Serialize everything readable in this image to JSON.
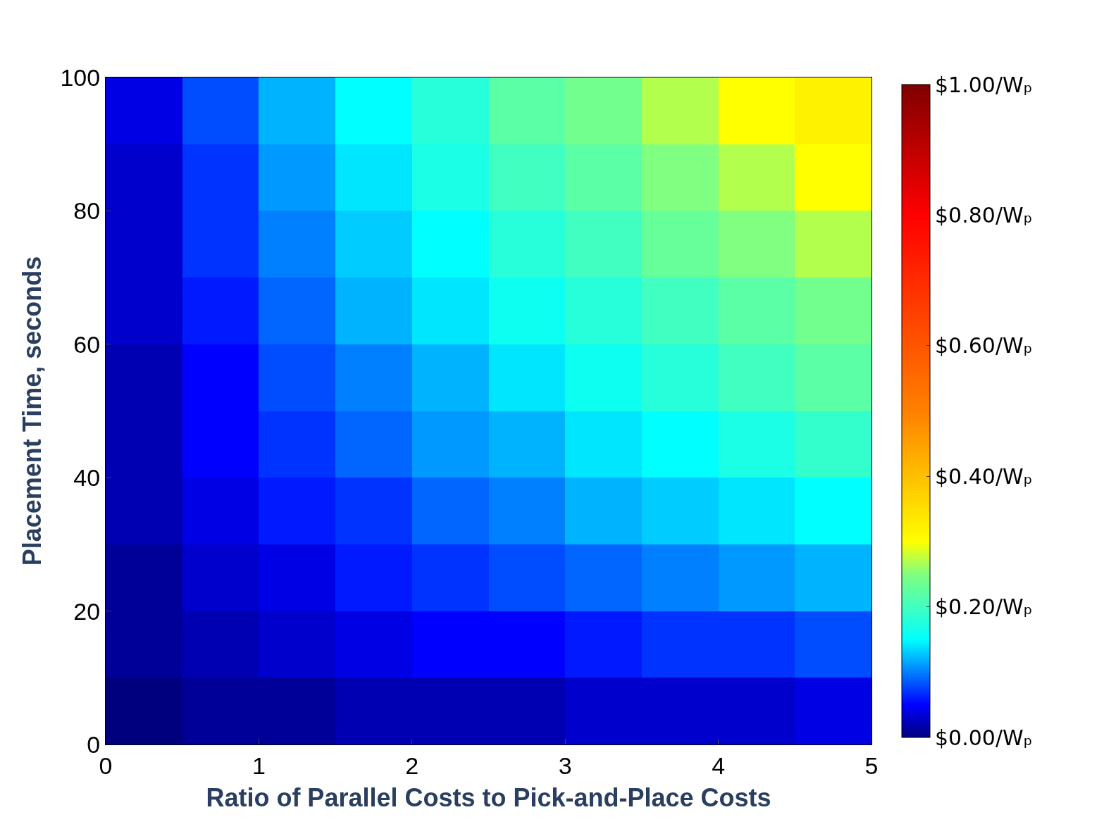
{
  "chart_data": {
    "type": "heatmap",
    "xlabel": "Ratio of Parallel Costs to Pick-and-Place Costs",
    "ylabel": "Placement Time, seconds",
    "x": [
      0.25,
      0.75,
      1.25,
      1.75,
      2.25,
      2.75,
      3.25,
      3.75,
      4.25,
      4.75
    ],
    "y": [
      95,
      85,
      75,
      65,
      55,
      45,
      35,
      25,
      15,
      5
    ],
    "cells": [
      [
        0.04,
        0.08,
        0.12,
        0.15,
        0.18,
        0.22,
        0.24,
        0.27,
        0.3,
        0.32
      ],
      [
        0.03,
        0.07,
        0.11,
        0.14,
        0.17,
        0.2,
        0.22,
        0.25,
        0.27,
        0.3
      ],
      [
        0.03,
        0.07,
        0.1,
        0.13,
        0.15,
        0.18,
        0.2,
        0.23,
        0.25,
        0.27
      ],
      [
        0.03,
        0.06,
        0.09,
        0.12,
        0.14,
        0.16,
        0.18,
        0.2,
        0.22,
        0.24
      ],
      [
        0.02,
        0.05,
        0.08,
        0.1,
        0.12,
        0.14,
        0.16,
        0.18,
        0.2,
        0.22
      ],
      [
        0.02,
        0.05,
        0.07,
        0.09,
        0.11,
        0.12,
        0.14,
        0.15,
        0.17,
        0.19
      ],
      [
        0.02,
        0.04,
        0.06,
        0.07,
        0.09,
        0.1,
        0.12,
        0.13,
        0.14,
        0.15
      ],
      [
        0.01,
        0.03,
        0.04,
        0.06,
        0.07,
        0.08,
        0.09,
        0.1,
        0.11,
        0.12
      ],
      [
        0.01,
        0.02,
        0.03,
        0.04,
        0.05,
        0.05,
        0.06,
        0.07,
        0.07,
        0.08
      ],
      [
        0,
        0.01,
        0.01,
        0.02,
        0.02,
        0.02,
        0.03,
        0.03,
        0.03,
        0.04
      ]
    ],
    "xlim": [
      0,
      5
    ],
    "xticks": [
      0,
      1,
      2,
      3,
      4,
      5
    ],
    "ylim": [
      0,
      100
    ],
    "yticks": [
      0,
      20,
      40,
      60,
      80,
      100
    ],
    "clim": [
      0,
      1
    ],
    "cticks": [
      {
        "value": 0,
        "label": "$0.00/Wₚ"
      },
      {
        "value": 0.2,
        "label": "$0.20/Wₚ"
      },
      {
        "value": 0.4,
        "label": "$0.40/Wₚ"
      },
      {
        "value": 0.6,
        "label": "$0.60/Wₚ"
      },
      {
        "value": 0.8,
        "label": "$0.80/Wₚ"
      },
      {
        "value": 1,
        "label": "$1.00/Wₚ"
      }
    ]
  }
}
